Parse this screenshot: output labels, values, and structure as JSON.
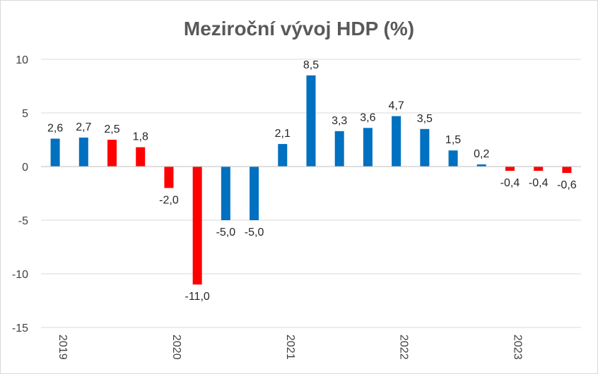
{
  "chart_data": {
    "type": "bar",
    "title": "Meziroční vývoj HDP (%)",
    "xlabel": "",
    "ylabel": "",
    "ylim": [
      -15,
      10
    ],
    "yticks": [
      10,
      5,
      0,
      -5,
      -10,
      -15
    ],
    "ytick_labels": [
      "10",
      "5",
      "0",
      "-5",
      "-10",
      "-15"
    ],
    "grid": true,
    "legend": "none",
    "year_labels": [
      {
        "label": "2019",
        "index": 0
      },
      {
        "label": "2020",
        "index": 4
      },
      {
        "label": "2021",
        "index": 8
      },
      {
        "label": "2022",
        "index": 12
      },
      {
        "label": "2023",
        "index": 16
      }
    ],
    "values": [
      2.6,
      2.7,
      2.5,
      1.8,
      -2.0,
      -11.0,
      -5.0,
      -5.0,
      2.1,
      8.5,
      3.3,
      3.6,
      4.7,
      3.5,
      1.5,
      0.2,
      -0.4,
      -0.4,
      -0.6
    ],
    "labels": [
      "2,6",
      "2,7",
      "2,5",
      "1,8",
      "-2,0",
      "-11,0",
      "-5,0",
      "-5,0",
      "2,1",
      "8,5",
      "3,3",
      "3,6",
      "4,7",
      "3,5",
      "1,5",
      "0,2",
      "-0,4",
      "-0,4",
      "-0,6"
    ],
    "colors": [
      "#0070c0",
      "#0070c0",
      "#ff0000",
      "#ff0000",
      "#ff0000",
      "#ff0000",
      "#0070c0",
      "#0070c0",
      "#0070c0",
      "#0070c0",
      "#0070c0",
      "#0070c0",
      "#0070c0",
      "#0070c0",
      "#0070c0",
      "#0070c0",
      "#ff0000",
      "#ff0000",
      "#ff0000"
    ]
  }
}
